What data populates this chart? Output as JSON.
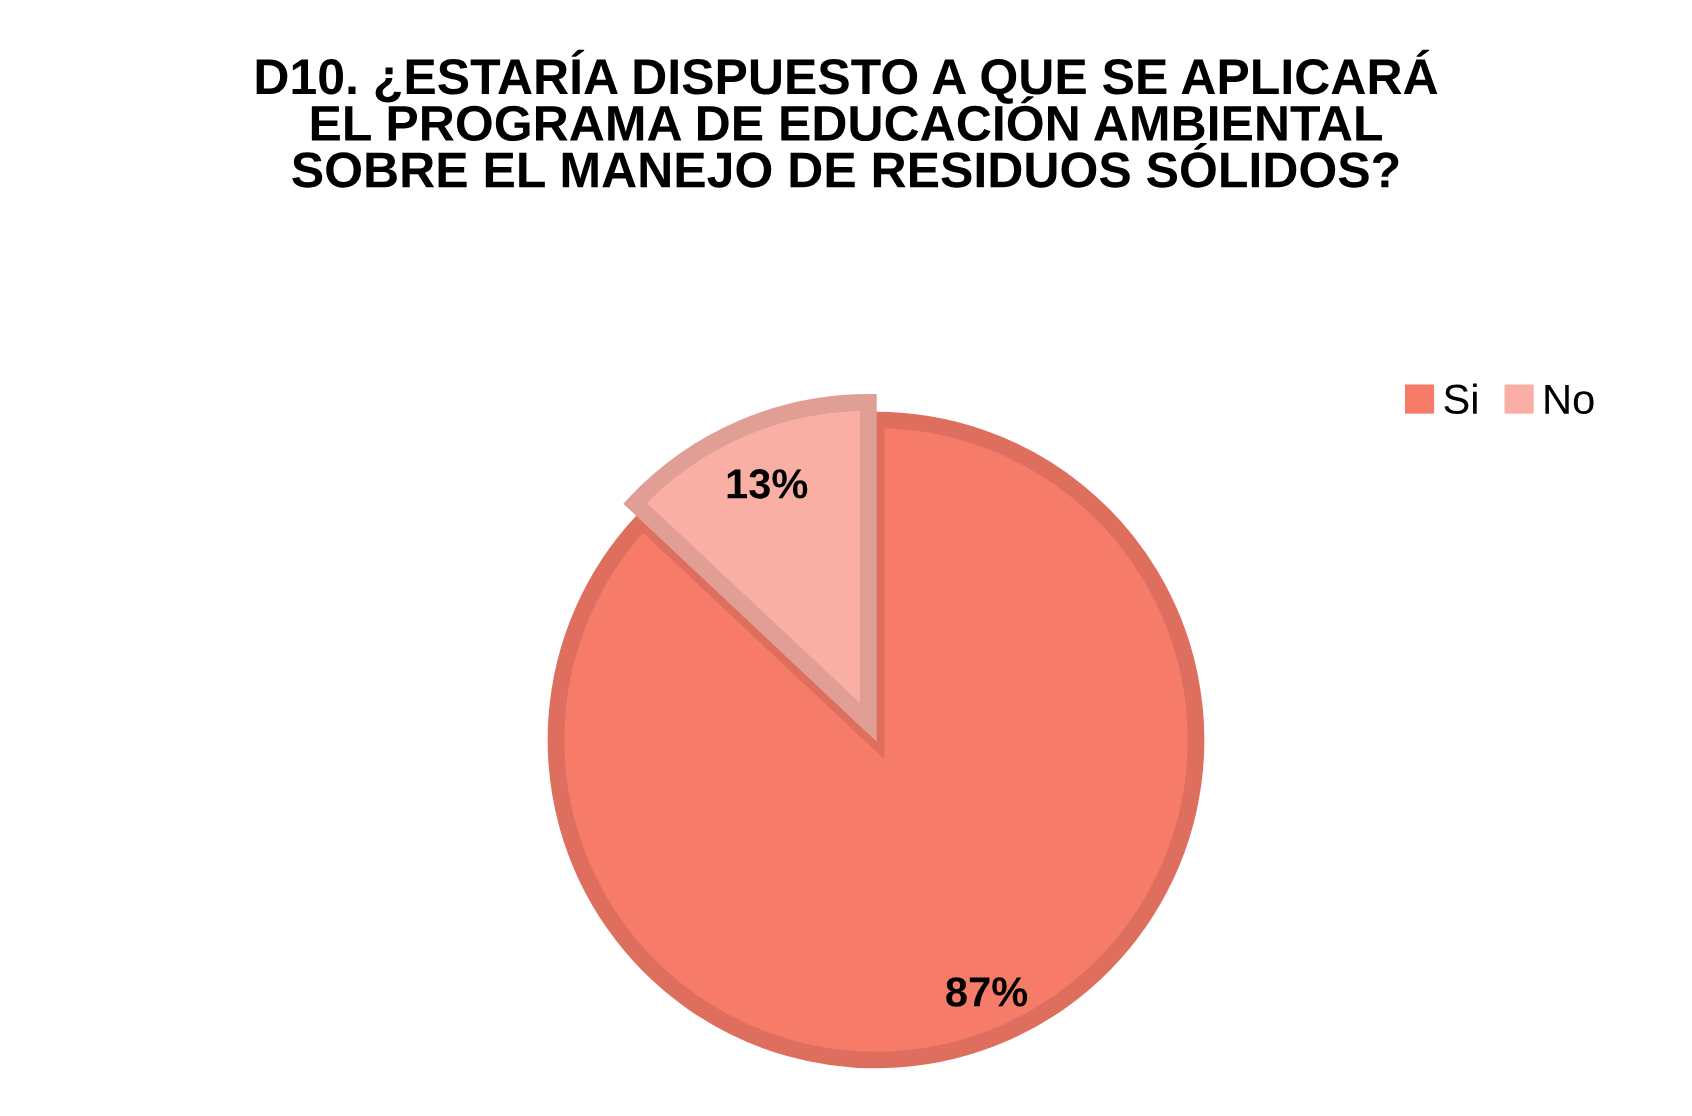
{
  "chart_data": {
    "type": "pie",
    "title": "D10. ¿ESTARÍA DISPUESTO A QUE SE APLICARÁ EL PROGRAMA DE EDUCACIÓN AMBIENTAL SOBRE EL MANEJO DE RESIDUOS SÓLIDOS?",
    "categories": [
      "Si",
      "No"
    ],
    "values": [
      87,
      13
    ],
    "colors": [
      "#f77b69",
      "#f9afa4"
    ],
    "value_labels": [
      "87%",
      "13%"
    ],
    "legend": "top right"
  }
}
